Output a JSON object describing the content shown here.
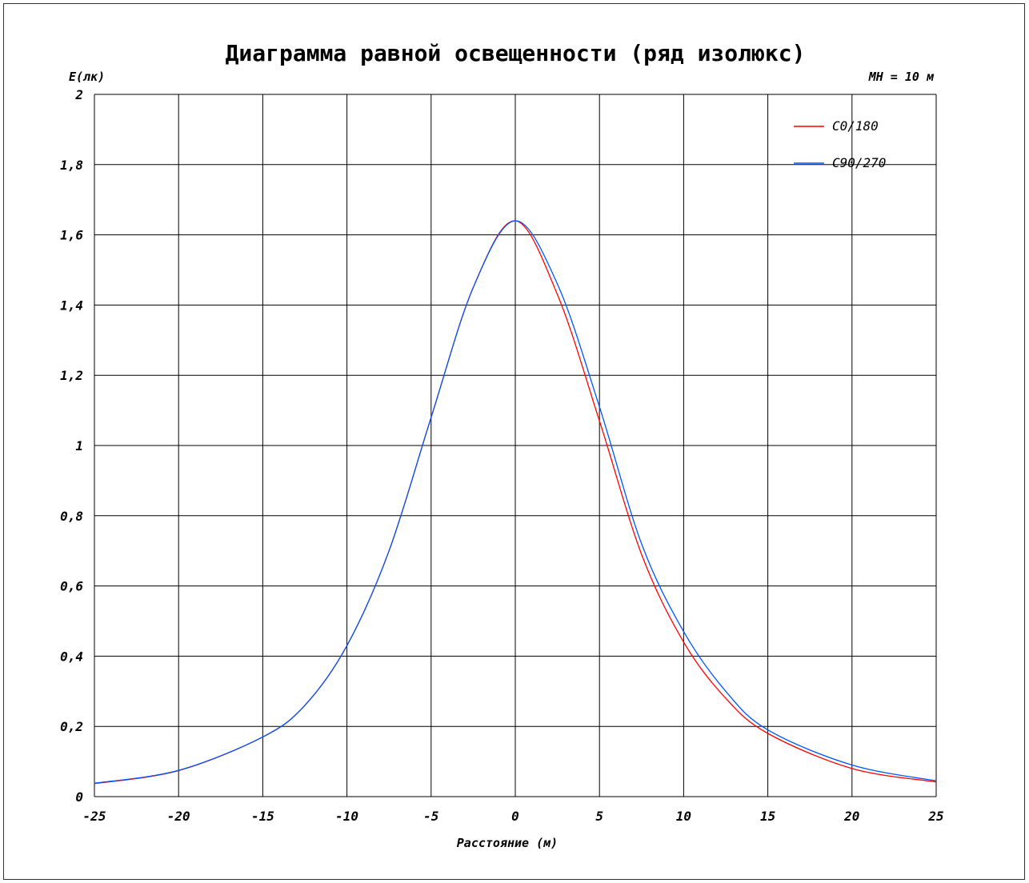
{
  "chart_data": {
    "type": "line",
    "title": "Диаграмма равной освещенности (ряд изолюкс)",
    "ylabel": "E(лк)",
    "xlabel": "Расстояние (м)",
    "annotation": "MH = 10 м",
    "xlim": [
      -25,
      25
    ],
    "ylim": [
      0,
      2
    ],
    "x_ticks": [
      -25,
      -20,
      -15,
      -10,
      -5,
      0,
      5,
      10,
      15,
      20,
      25
    ],
    "x_tick_labels": [
      "-25",
      "-20",
      "-15",
      "-10",
      "-5",
      "0",
      "5",
      "10",
      "15",
      "20",
      "25"
    ],
    "y_ticks": [
      0,
      0.2,
      0.4,
      0.6,
      0.8,
      1,
      1.2,
      1.4,
      1.6,
      1.8,
      2
    ],
    "y_tick_labels": [
      "0",
      "0,2",
      "0,4",
      "0,6",
      "0,8",
      "1",
      "1,2",
      "1,4",
      "1,6",
      "1,8",
      "2"
    ],
    "grid": true,
    "legend_position": "top-right",
    "x": [
      -25,
      -20,
      -15,
      -12.5,
      -10,
      -7.5,
      -5,
      -2.5,
      0,
      2.5,
      5,
      7.5,
      10,
      12.5,
      15,
      20,
      25
    ],
    "series": [
      {
        "name": "C0/180",
        "color": "#ff0000",
        "values": [
          0.037,
          0.074,
          0.17,
          0.26,
          0.43,
          0.7,
          1.08,
          1.45,
          1.64,
          1.43,
          1.07,
          0.69,
          0.44,
          0.28,
          0.18,
          0.08,
          0.042
        ]
      },
      {
        "name": "C90/270",
        "color": "#0055ff",
        "values": [
          0.038,
          0.075,
          0.17,
          0.26,
          0.43,
          0.7,
          1.08,
          1.45,
          1.64,
          1.46,
          1.11,
          0.72,
          0.47,
          0.3,
          0.19,
          0.09,
          0.045
        ]
      }
    ]
  }
}
